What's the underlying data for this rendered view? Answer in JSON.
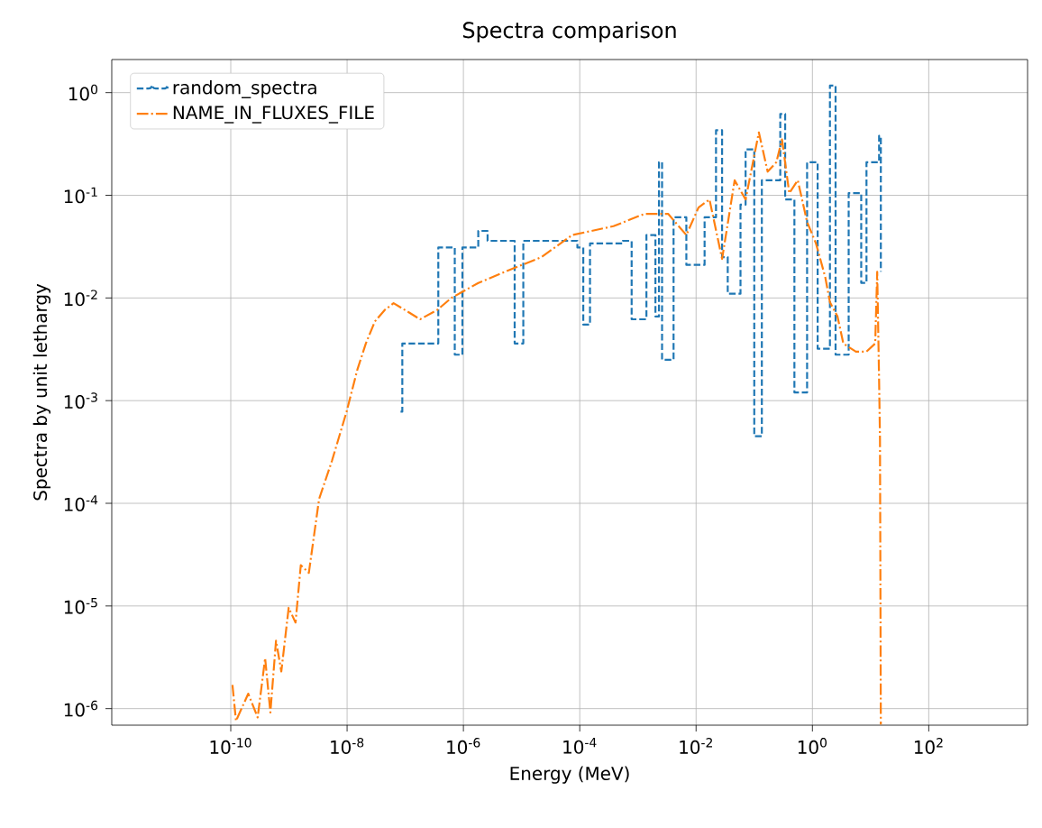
{
  "chart_data": {
    "type": "line",
    "title": "Spectra comparison",
    "xlabel": "Energy (MeV)",
    "ylabel": "Spectra by unit lethargy",
    "log": "xy",
    "grid": true,
    "legend": "top left",
    "xlim": [
      9e-13,
      5000
    ],
    "ylim": [
      6.9e-07,
      2.1
    ],
    "xticks": [
      {
        "value": 1e-10,
        "label": "10$^{-10}$"
      },
      {
        "value": 1e-08,
        "label": "10$^{-8}$"
      },
      {
        "value": 1e-06,
        "label": "10$^{-6}$"
      },
      {
        "value": 0.0001,
        "label": "10$^{-4}$"
      },
      {
        "value": 0.01,
        "label": "10$^{-2}$"
      },
      {
        "value": 1,
        "label": "10$^{0}$"
      },
      {
        "value": 100,
        "label": "10$^{2}$"
      }
    ],
    "yticks": [
      {
        "value": 1e-06,
        "label": "10$^{-6}$"
      },
      {
        "value": 1e-05,
        "label": "10$^{-5}$"
      },
      {
        "value": 0.0001,
        "label": "10$^{-4}$"
      },
      {
        "value": 0.001,
        "label": "10$^{-3}$"
      },
      {
        "value": 0.01,
        "label": "10$^{-2}$"
      },
      {
        "value": 0.1,
        "label": "10$^{-1}$"
      },
      {
        "value": 1,
        "label": "10$^{0}$"
      }
    ],
    "series": [
      {
        "name": "random_spectra",
        "type": "step",
        "color": "#1f77b4",
        "line_style": "dashed",
        "x": [
          8.3e-08,
          8.9e-08,
          3.7e-07,
          7.1e-07,
          9.6e-07,
          1.8e-06,
          2.6e-06,
          7.6e-06,
          1.07e-05,
          9.1e-05,
          0.000115,
          0.00015,
          0.00055,
          0.00078,
          0.0014,
          0.002,
          0.0023,
          0.0026,
          0.0041,
          0.0068,
          0.014,
          0.022,
          0.028,
          0.035,
          0.058,
          0.071,
          0.1,
          0.135,
          0.28,
          0.34,
          0.49,
          0.81,
          1.23,
          2.0,
          2.5,
          4.2,
          6.9,
          8.5,
          14,
          15
        ],
        "values": [
          0.00078,
          0.0036,
          0.031,
          0.0028,
          0.031,
          0.045,
          0.036,
          0.0036,
          0.036,
          0.031,
          0.0055,
          0.034,
          0.036,
          0.0062,
          0.041,
          0.0066,
          0.21,
          0.0025,
          0.061,
          0.021,
          0.061,
          0.43,
          0.025,
          0.011,
          0.081,
          0.28,
          0.00045,
          0.14,
          0.62,
          0.091,
          0.0012,
          0.21,
          0.0032,
          1.17,
          0.0028,
          0.105,
          0.014,
          0.21,
          0.38,
          0.018
        ]
      },
      {
        "name": "NAME_IN_FLUXES_FILE",
        "type": "line",
        "color": "#ff7f0e",
        "line_style": "dashdot",
        "x": [
          1.07e-10,
          1.23e-10,
          2e-10,
          2.9e-10,
          3.9e-10,
          4.8e-10,
          6e-10,
          7.4e-10,
          9.9e-10,
          1.3e-09,
          1.6e-09,
          2.2e-09,
          3.3e-09,
          5.5e-09,
          9.8e-09,
          1.5e-08,
          2.1e-08,
          3e-08,
          4.4e-08,
          6.3e-08,
          1e-07,
          1.8e-07,
          3.5e-07,
          6.2e-07,
          1.8e-06,
          5.2e-06,
          2.2e-05,
          7.4e-05,
          0.00038,
          0.0013,
          0.0033,
          0.0068,
          0.011,
          0.017,
          0.028,
          0.046,
          0.071,
          0.12,
          0.17,
          0.24,
          0.3,
          0.4,
          0.56,
          0.81,
          1.15,
          1.66,
          2.0,
          2.7,
          3.4,
          5.6,
          8.5,
          12,
          13,
          14,
          14.5,
          15
        ],
        "values": [
          1.7e-06,
          7.6e-07,
          1.4e-06,
          8.2e-07,
          3.1e-06,
          9.2e-07,
          4.6e-06,
          2.3e-06,
          9.6e-06,
          6.9e-06,
          2.5e-05,
          2.1e-05,
          0.00011,
          0.00026,
          0.00078,
          0.002,
          0.0036,
          0.0059,
          0.0076,
          0.0089,
          0.0076,
          0.0062,
          0.0076,
          0.01,
          0.014,
          0.018,
          0.025,
          0.041,
          0.05,
          0.066,
          0.066,
          0.041,
          0.076,
          0.091,
          0.024,
          0.14,
          0.091,
          0.41,
          0.17,
          0.21,
          0.35,
          0.105,
          0.14,
          0.055,
          0.034,
          0.016,
          0.0091,
          0.0066,
          0.0036,
          0.003,
          0.003,
          0.0036,
          0.018,
          0.0016,
          0.00043,
          7e-07
        ]
      }
    ]
  }
}
